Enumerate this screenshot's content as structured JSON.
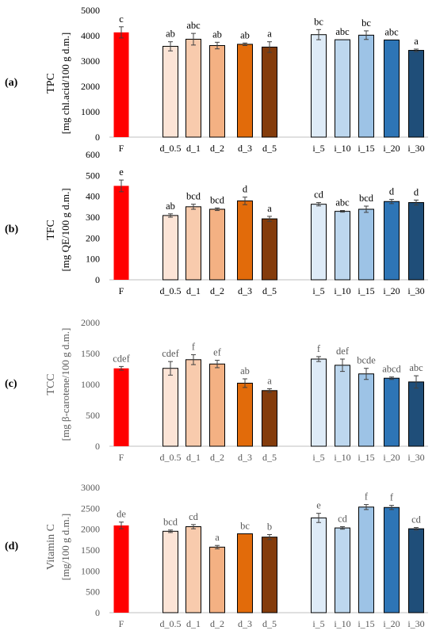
{
  "chart_data": [
    {
      "type": "bar",
      "panel_label": "(a)",
      "ylabel": "TPC",
      "ylabel2": "[mg chl.acid/100 g d.m.]",
      "ylim": [
        0,
        5000
      ],
      "yticks": [
        0,
        1000,
        2000,
        3000,
        4000,
        5000
      ],
      "categories": [
        "F",
        "d_0.5",
        "d_1",
        "d_2",
        "d_3",
        "d_5",
        "i_5",
        "i_10",
        "i_15",
        "i_20",
        "i_30"
      ],
      "values": [
        4130,
        3580,
        3860,
        3610,
        3660,
        3550,
        4040,
        3840,
        4020,
        3830,
        3420
      ],
      "errors": [
        220,
        180,
        230,
        130,
        50,
        210,
        200,
        0,
        170,
        0,
        50
      ],
      "significance": [
        "c",
        "ab",
        "abc",
        "ab",
        "ab",
        "a",
        "bc",
        "abc",
        "bc",
        "abc",
        "a"
      ],
      "colors": [
        "#ff0000",
        "#fce4d6",
        "#f8cbad",
        "#f4b183",
        "#e26b0a",
        "#843c0c",
        "#deebf7",
        "#bdd7ee",
        "#9dc3e6",
        "#2e75b6",
        "#1f4e79"
      ]
    },
    {
      "type": "bar",
      "panel_label": "(b)",
      "ylabel": "TFC",
      "ylabel2": "[mg QE/100 g d.m.]",
      "ylim": [
        0,
        600
      ],
      "yticks": [
        0,
        100,
        200,
        300,
        400,
        500,
        600
      ],
      "categories": [
        "F",
        "d_0.5",
        "d_1",
        "d_2",
        "d_3",
        "d_5",
        "i_5",
        "i_10",
        "i_15",
        "i_20",
        "i_30"
      ],
      "values": [
        450,
        308,
        350,
        338,
        378,
        292,
        362,
        328,
        338,
        375,
        370
      ],
      "errors": [
        28,
        8,
        12,
        6,
        18,
        12,
        8,
        4,
        15,
        10,
        12
      ],
      "significance": [
        "e",
        "ab",
        "bcd",
        "bcd",
        "d",
        "a",
        "cd",
        "abc",
        "bcd",
        "d",
        "d"
      ],
      "colors": [
        "#ff0000",
        "#fce4d6",
        "#f8cbad",
        "#f4b183",
        "#e26b0a",
        "#843c0c",
        "#deebf7",
        "#bdd7ee",
        "#9dc3e6",
        "#2e75b6",
        "#1f4e79"
      ]
    },
    {
      "type": "bar",
      "panel_label": "(c)",
      "ylabel": "TCC",
      "ylabel2": "[mg β-carotene/100 g d.m.]",
      "ylim": [
        0,
        2000
      ],
      "yticks": [
        0,
        500,
        1000,
        1500,
        2000
      ],
      "categories": [
        "F",
        "d_0.5",
        "d_1",
        "d_2",
        "d_3",
        "d_5",
        "i_5",
        "i_10",
        "i_15",
        "i_20",
        "i_30"
      ],
      "values": [
        1260,
        1260,
        1400,
        1330,
        1020,
        900,
        1410,
        1310,
        1170,
        1100,
        1040
      ],
      "errors": [
        30,
        110,
        80,
        60,
        70,
        30,
        40,
        100,
        90,
        20,
        100
      ],
      "significance": [
        "cdef",
        "cdef",
        "f",
        "ef",
        "ab",
        "a",
        "f",
        "def",
        "bcde",
        "abcd",
        "abc"
      ],
      "colors": [
        "#ff0000",
        "#fce4d6",
        "#f8cbad",
        "#f4b183",
        "#e26b0a",
        "#843c0c",
        "#deebf7",
        "#bdd7ee",
        "#9dc3e6",
        "#2e75b6",
        "#1f4e79"
      ],
      "gray_text": true
    },
    {
      "type": "bar",
      "panel_label": "(d)",
      "ylabel": "Vitamin C",
      "ylabel2": "[mg/100 g d.m.]",
      "ylim": [
        0,
        3000
      ],
      "yticks": [
        0,
        500,
        1000,
        1500,
        2000,
        2500,
        3000
      ],
      "categories": [
        "F",
        "d_0.5",
        "d_1",
        "d_2",
        "d_3",
        "d_5",
        "i_5",
        "i_10",
        "i_15",
        "i_20",
        "i_30"
      ],
      "values": [
        2090,
        1950,
        2060,
        1570,
        1890,
        1810,
        2270,
        2030,
        2530,
        2520,
        2010
      ],
      "errors": [
        80,
        30,
        50,
        40,
        0,
        60,
        110,
        30,
        60,
        50,
        30
      ],
      "significance": [
        "de",
        "bcd",
        "cd",
        "a",
        "bc",
        "b",
        "e",
        "cd",
        "f",
        "f",
        "cd"
      ],
      "colors": [
        "#ff0000",
        "#fce4d6",
        "#f8cbad",
        "#f4b183",
        "#e26b0a",
        "#843c0c",
        "#deebf7",
        "#bdd7ee",
        "#9dc3e6",
        "#2e75b6",
        "#1f4e79"
      ],
      "gray_text": true
    }
  ]
}
